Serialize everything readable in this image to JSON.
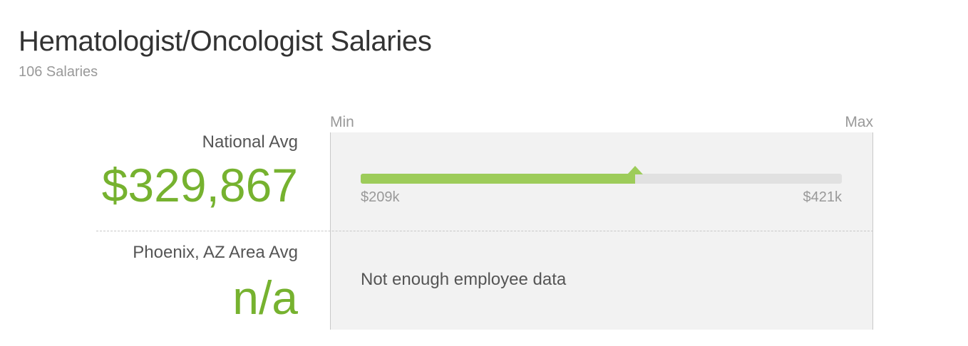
{
  "header": {
    "title": "Hematologist/Oncologist Salaries",
    "subtitle": "106 Salaries"
  },
  "scale": {
    "min_label": "Min",
    "max_label": "Max"
  },
  "national": {
    "label": "National Avg",
    "average": {
      "value": 329867,
      "label": "$329,867"
    },
    "range": {
      "min": {
        "value": 209000,
        "label": "$209k"
      },
      "max": {
        "value": 421000,
        "label": "$421k"
      }
    }
  },
  "local": {
    "label": "Phoenix, AZ Area Avg",
    "average": "n/a",
    "message": "Not enough employee data"
  }
}
